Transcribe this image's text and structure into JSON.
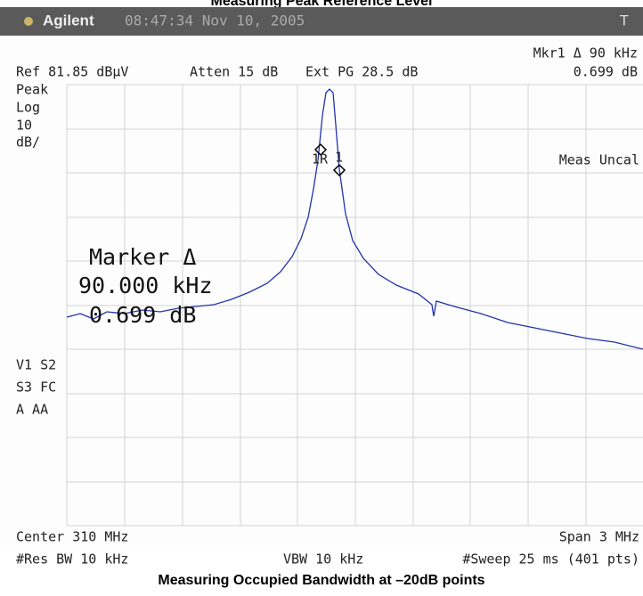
{
  "caption_top": "Measuring Peak Reference Level",
  "header": {
    "brand": "Agilent",
    "timestamp": "08:47:34  Nov 10, 2005",
    "trigger": "T"
  },
  "readouts": {
    "marker": "Mkr1 Δ  90 kHz",
    "ref": "Ref 81.85 dBµV",
    "atten": "Atten 15 dB",
    "ext_pg": "Ext PG 28.5 dB",
    "marker_value": "0.699 dB",
    "meas_uncal": "Meas Uncal"
  },
  "left_labels": [
    "Peak",
    "Log",
    "10",
    "dB/"
  ],
  "mode_labels": [
    "V1  S2",
    "S3  FC",
    "A   AA"
  ],
  "marker_box": [
    "Marker Δ",
    "90.000 kHz",
    "0.699 dB"
  ],
  "marker_tags": [
    "1R",
    "1"
  ],
  "footer": {
    "center": "Center 310 MHz",
    "span": "Span 3 MHz",
    "res_bw": "#Res BW 10 kHz",
    "vbw": "VBW 10 kHz",
    "sweep": "#Sweep 25 ms (401 pts)"
  },
  "caption_bottom": "Measuring Occupied Bandwidth at –20dB points"
}
